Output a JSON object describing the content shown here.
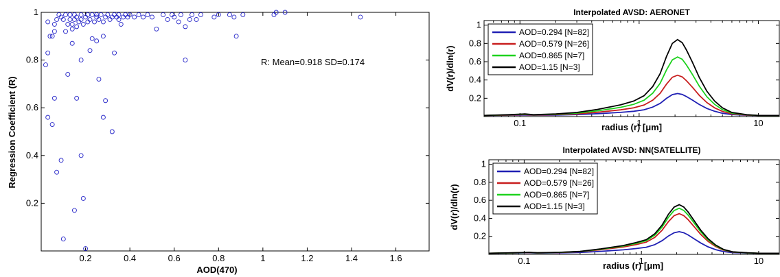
{
  "chart_data": [
    {
      "type": "scatter",
      "title": "",
      "xlabel": "AOD(470)",
      "ylabel": "Regression Coefficient (R)",
      "xlim": [
        0,
        1.75
      ],
      "ylim": [
        0,
        1.0
      ],
      "xticks": [
        "0.2",
        "0.4",
        "0.6",
        "0.8",
        "1",
        "1.2",
        "1.4",
        "1.6"
      ],
      "yticks": [
        "0.2",
        "0.4",
        "0.6",
        "0.8",
        "1"
      ],
      "annotation": "R: Mean=0.918 SD=0.174",
      "marker_color": "#2323c8",
      "points": [
        [
          0.03,
          0.96
        ],
        [
          0.04,
          0.9
        ],
        [
          0.05,
          0.9
        ],
        [
          0.06,
          0.95
        ],
        [
          0.06,
          0.92
        ],
        [
          0.07,
          0.97
        ],
        [
          0.08,
          0.99
        ],
        [
          0.09,
          0.98
        ],
        [
          0.1,
          0.97
        ],
        [
          0.11,
          0.92
        ],
        [
          0.11,
          0.99
        ],
        [
          0.12,
          0.95
        ],
        [
          0.13,
          0.97
        ],
        [
          0.13,
          0.99
        ],
        [
          0.14,
          0.93
        ],
        [
          0.14,
          0.95
        ],
        [
          0.15,
          0.99
        ],
        [
          0.15,
          0.97
        ],
        [
          0.16,
          0.94
        ],
        [
          0.16,
          0.98
        ],
        [
          0.17,
          0.96
        ],
        [
          0.18,
          0.99
        ],
        [
          0.18,
          0.97
        ],
        [
          0.19,
          0.95
        ],
        [
          0.2,
          0.98
        ],
        [
          0.21,
          0.99
        ],
        [
          0.21,
          0.96
        ],
        [
          0.22,
          0.97
        ],
        [
          0.23,
          0.99
        ],
        [
          0.24,
          0.96
        ],
        [
          0.25,
          0.99
        ],
        [
          0.25,
          0.98
        ],
        [
          0.26,
          0.97
        ],
        [
          0.27,
          0.99
        ],
        [
          0.28,
          0.96
        ],
        [
          0.29,
          0.98
        ],
        [
          0.3,
          0.99
        ],
        [
          0.31,
          0.97
        ],
        [
          0.32,
          0.98
        ],
        [
          0.33,
          0.99
        ],
        [
          0.34,
          0.98
        ],
        [
          0.35,
          0.97
        ],
        [
          0.35,
          0.99
        ],
        [
          0.36,
          0.95
        ],
        [
          0.37,
          0.98
        ],
        [
          0.38,
          0.99
        ],
        [
          0.39,
          0.98
        ],
        [
          0.4,
          0.99
        ],
        [
          0.42,
          0.98
        ],
        [
          0.44,
          0.99
        ],
        [
          0.46,
          0.98
        ],
        [
          0.48,
          0.99
        ],
        [
          0.5,
          0.98
        ],
        [
          0.52,
          0.93
        ],
        [
          0.55,
          0.99
        ],
        [
          0.57,
          0.97
        ],
        [
          0.59,
          0.99
        ],
        [
          0.6,
          0.98
        ],
        [
          0.62,
          0.96
        ],
        [
          0.63,
          0.99
        ],
        [
          0.65,
          0.94
        ],
        [
          0.67,
          0.97
        ],
        [
          0.68,
          0.99
        ],
        [
          0.7,
          0.97
        ],
        [
          0.72,
          0.99
        ],
        [
          0.78,
          0.98
        ],
        [
          0.8,
          0.99
        ],
        [
          0.85,
          0.99
        ],
        [
          0.87,
          0.98
        ],
        [
          0.88,
          0.9
        ],
        [
          0.91,
          0.99
        ],
        [
          1.05,
          0.99
        ],
        [
          1.06,
          1.0
        ],
        [
          1.1,
          1.0
        ],
        [
          1.44,
          0.98
        ],
        [
          0.02,
          0.78
        ],
        [
          0.03,
          0.83
        ],
        [
          0.03,
          0.56
        ],
        [
          0.05,
          0.53
        ],
        [
          0.06,
          0.64
        ],
        [
          0.07,
          0.33
        ],
        [
          0.09,
          0.38
        ],
        [
          0.1,
          0.05
        ],
        [
          0.12,
          0.74
        ],
        [
          0.14,
          0.87
        ],
        [
          0.15,
          0.17
        ],
        [
          0.16,
          0.64
        ],
        [
          0.18,
          0.8
        ],
        [
          0.18,
          0.4
        ],
        [
          0.19,
          0.22
        ],
        [
          0.2,
          0.01
        ],
        [
          0.22,
          0.84
        ],
        [
          0.23,
          0.89
        ],
        [
          0.25,
          0.88
        ],
        [
          0.26,
          0.72
        ],
        [
          0.28,
          0.9
        ],
        [
          0.28,
          0.56
        ],
        [
          0.29,
          0.63
        ],
        [
          0.32,
          0.5
        ],
        [
          0.33,
          0.83
        ],
        [
          0.65,
          0.8
        ]
      ]
    },
    {
      "type": "line",
      "title": "Interpolated AVSD: AERONET",
      "xlabel": "radius (r) [μm]",
      "ylabel": "dV(r)/dln(r)",
      "xscale": "log",
      "xlim": [
        0.05,
        15
      ],
      "ylim": [
        0,
        1.05
      ],
      "xticks": [
        "0.1",
        "1",
        "10"
      ],
      "yticks": [
        "0.2",
        "0.4",
        "0.6",
        "0.8",
        "1"
      ],
      "legend": "top-left",
      "series": [
        {
          "name": "AOD=0.294 [N=82]",
          "color": "#1f1fb4",
          "peak": 0.24
        },
        {
          "name": "AOD=0.579 [N=26]",
          "color": "#c81e1e",
          "peak": 0.44
        },
        {
          "name": "AOD=0.865 [N=7]",
          "color": "#1ed21e",
          "peak": 0.64
        },
        {
          "name": "AOD=1.15 [N=3]",
          "color": "#000000",
          "peak": 0.83
        }
      ],
      "x": [
        0.05,
        0.08,
        0.11,
        0.13,
        0.2,
        0.3,
        0.45,
        0.7,
        0.9,
        1.1,
        1.3,
        1.5,
        1.7,
        1.9,
        2.1,
        2.3,
        2.5,
        2.8,
        3.2,
        3.7,
        4.3,
        5,
        6,
        8,
        10,
        15
      ],
      "shape": [
        0.0,
        0.01,
        0.02,
        0.01,
        0.02,
        0.04,
        0.08,
        0.14,
        0.19,
        0.26,
        0.38,
        0.55,
        0.78,
        0.95,
        1.0,
        0.96,
        0.86,
        0.7,
        0.5,
        0.32,
        0.19,
        0.1,
        0.04,
        0.01,
        0.0,
        0.0
      ]
    },
    {
      "type": "line",
      "title": "Interpolated AVSD: NN(SATELLITE)",
      "xlabel": "radius (r) [μm]",
      "ylabel": "dV(r)/dln(r)",
      "xscale": "log",
      "xlim": [
        0.05,
        15
      ],
      "ylim": [
        0,
        1.05
      ],
      "xticks": [
        "0.1",
        "1",
        "10"
      ],
      "yticks": [
        "0.2",
        "0.4",
        "0.6",
        "0.8",
        "1"
      ],
      "legend": "top-left",
      "series": [
        {
          "name": "AOD=0.294 [N=82]",
          "color": "#1f1fb4",
          "peak": 0.24
        },
        {
          "name": "AOD=0.579 [N=26]",
          "color": "#c81e1e",
          "peak": 0.44
        },
        {
          "name": "AOD=0.865 [N=7]",
          "color": "#1ed21e",
          "peak": 0.5
        },
        {
          "name": "AOD=1.15 [N=3]",
          "color": "#000000",
          "peak": 0.54
        }
      ],
      "x": [
        0.05,
        0.08,
        0.11,
        0.13,
        0.2,
        0.3,
        0.45,
        0.7,
        0.9,
        1.1,
        1.3,
        1.5,
        1.7,
        1.9,
        2.1,
        2.3,
        2.5,
        2.8,
        3.2,
        3.7,
        4.3,
        5,
        6,
        8,
        10,
        15
      ],
      "shape": [
        0.0,
        0.01,
        0.02,
        0.01,
        0.02,
        0.04,
        0.09,
        0.16,
        0.22,
        0.28,
        0.4,
        0.58,
        0.8,
        0.95,
        1.0,
        0.95,
        0.85,
        0.68,
        0.48,
        0.3,
        0.17,
        0.08,
        0.03,
        0.01,
        0.0,
        0.0
      ]
    }
  ]
}
